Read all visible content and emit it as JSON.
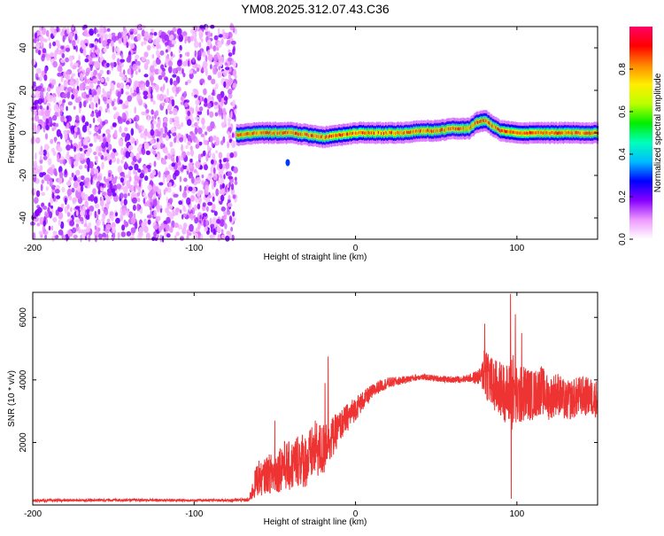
{
  "title": "YM08.2025.312.07.43.C36",
  "chart_data": [
    {
      "type": "heatmap",
      "title": "",
      "xlabel": "Height of straight line (km)",
      "ylabel": "Frequency (Hz)",
      "xlim": [
        -200,
        150
      ],
      "ylim": [
        -50,
        50
      ],
      "xticks": [
        -200,
        -100,
        0,
        100
      ],
      "yticks": [
        -40,
        -20,
        0,
        20,
        40
      ],
      "colorbar": {
        "label": "Normalized spectral amplitude",
        "range": [
          0,
          1
        ],
        "ticks": [
          0.0,
          0.2,
          0.4,
          0.6,
          0.8
        ],
        "tick_labels": [
          "0.0",
          "0.2",
          "0.4",
          "0.6",
          "0.8"
        ],
        "colormap": [
          "#ffffff",
          "#ee99ff",
          "#8800ff",
          "#0000ff",
          "#00bbff",
          "#00ffbb",
          "#00ee00",
          "#bbff00",
          "#ffee00",
          "#ff8800",
          "#ff0000",
          "#ff0066"
        ]
      },
      "noise_region": {
        "x_range": [
          -200,
          -74
        ],
        "freq_range": [
          -50,
          50
        ],
        "amplitude_range": [
          0.05,
          0.2
        ]
      },
      "signal_ridge": {
        "x": [
          -74,
          -60,
          -50,
          -40,
          -30,
          -20,
          -10,
          0,
          10,
          20,
          30,
          40,
          50,
          60,
          70,
          75,
          80,
          85,
          90,
          100,
          110,
          120,
          130,
          140,
          150
        ],
        "freq": [
          -1,
          0,
          0,
          0,
          -1,
          -2,
          -1,
          0,
          0,
          0,
          0,
          1,
          1,
          2,
          2,
          5,
          6,
          3,
          1,
          0,
          0,
          0,
          0,
          0,
          0
        ],
        "peak_amplitude": 0.95,
        "bandwidth_hz": 5
      },
      "isolated_blobs": [
        {
          "x": -42,
          "freq": -14,
          "amplitude": 0.3
        }
      ]
    },
    {
      "type": "line",
      "title": "",
      "xlabel": "Height of straight line (km)",
      "ylabel": "SNR (10 * v/v)",
      "xlim": [
        -200,
        150
      ],
      "ylim": [
        0,
        6800
      ],
      "xticks": [
        -200,
        -100,
        0,
        100
      ],
      "yticks": [
        2000,
        4000,
        6000
      ],
      "series": [
        {
          "color": "#ee3333",
          "x": [
            -200,
            -150,
            -100,
            -80,
            -66,
            -62,
            -60,
            -58,
            -55,
            -50,
            -45,
            -40,
            -35,
            -30,
            -25,
            -20,
            -17,
            -15,
            -10,
            -5,
            0,
            5,
            10,
            15,
            20,
            25,
            30,
            40,
            50,
            60,
            70,
            78,
            80,
            82,
            85,
            90,
            95,
            97,
            100,
            105,
            110,
            115,
            120,
            125,
            130,
            140,
            150
          ],
          "y": [
            140,
            160,
            150,
            150,
            160,
            700,
            900,
            800,
            1000,
            1000,
            1300,
            1200,
            1500,
            1400,
            1800,
            1700,
            2300,
            2100,
            2500,
            2800,
            3100,
            3350,
            3600,
            3800,
            3900,
            3950,
            4000,
            4100,
            4050,
            4000,
            4050,
            4100,
            4400,
            4200,
            3800,
            3700,
            3500,
            3700,
            3400,
            3600,
            3500,
            3700,
            3400,
            3600,
            3300,
            3500,
            3400
          ],
          "noise_amplitude": [
            40,
            40,
            40,
            40,
            60,
            500,
            600,
            500,
            600,
            700,
            800,
            800,
            900,
            900,
            900,
            900,
            900,
            700,
            500,
            450,
            400,
            300,
            250,
            200,
            180,
            150,
            120,
            100,
            100,
            100,
            120,
            300,
            1100,
            900,
            900,
            900,
            1000,
            1400,
            1000,
            900,
            800,
            800,
            700,
            700,
            650,
            650,
            600
          ],
          "spikes": [
            {
              "x": -17,
              "y": 4750
            },
            {
              "x": -19,
              "y": 3900
            },
            {
              "x": -50,
              "y": 2700
            },
            {
              "x": 80,
              "y": 5800
            },
            {
              "x": 96,
              "y": 6750
            },
            {
              "x": 96.5,
              "y": 200
            },
            {
              "x": 99,
              "y": 6100
            },
            {
              "x": 103,
              "y": 5500
            }
          ]
        }
      ]
    }
  ]
}
